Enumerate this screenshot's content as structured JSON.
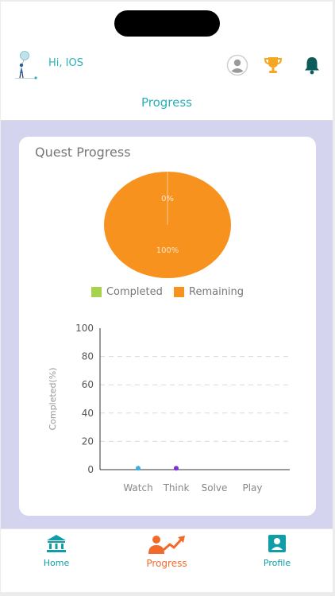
{
  "header": {
    "greeting": "Hi, IOS",
    "icons": [
      "avatar-icon",
      "trophy-icon",
      "bell-icon"
    ]
  },
  "page": {
    "title": "Progress"
  },
  "card": {
    "title": "Quest Progress"
  },
  "chart_data": [
    {
      "type": "pie",
      "slices": [
        {
          "label": "Completed",
          "value": 0,
          "display": "0%",
          "color": "#a6d24e"
        },
        {
          "label": "Remaining",
          "value": 100,
          "display": "100%",
          "color": "#f7921e"
        }
      ],
      "legend": [
        "Completed",
        "Remaining"
      ],
      "legend_position": "bottom"
    },
    {
      "type": "scatter",
      "categories": [
        "Watch",
        "Think",
        "Solve",
        "Play"
      ],
      "values": [
        1,
        1,
        null,
        null
      ],
      "point_colors": [
        "#3aaee0",
        "#7b2fd6"
      ],
      "ylabel": "Completed(%)",
      "ylim": [
        0,
        100
      ],
      "yticks": [
        0,
        20,
        40,
        60,
        80,
        100
      ],
      "grid": "dashed horizontal"
    }
  ],
  "nav": {
    "items": [
      {
        "label": "Home",
        "icon": "bank-icon",
        "color": "#0f9ea8"
      },
      {
        "label": "Progress",
        "icon": "progress-icon",
        "color": "#f26a2a"
      },
      {
        "label": "Profile",
        "icon": "profile-icon",
        "color": "#0f9ea8"
      }
    ]
  }
}
